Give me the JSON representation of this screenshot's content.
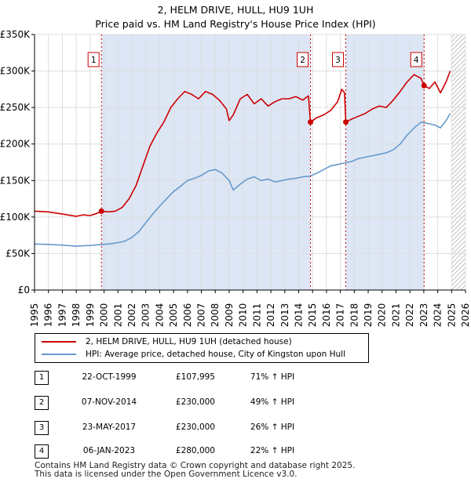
{
  "title": {
    "line1": "2, HELM DRIVE, HULL, HU9 1UH",
    "line2": "Price paid vs. HM Land Registry's House Price Index (HPI)"
  },
  "chart_data": {
    "type": "line",
    "title": "2, HELM DRIVE, HULL, HU9 1UH",
    "subtitle": "Price paid vs. HM Land Registry's House Price Index (HPI)",
    "xlabel": "",
    "ylabel": "",
    "xlim": [
      1995,
      2026
    ],
    "ylim": [
      0,
      350000
    ],
    "y_ticks": [
      0,
      50000,
      100000,
      150000,
      200000,
      250000,
      300000,
      350000
    ],
    "y_tick_labels": [
      "£0",
      "£50K",
      "£100K",
      "£150K",
      "£200K",
      "£250K",
      "£300K",
      "£350K"
    ],
    "x_ticks": [
      1995,
      1996,
      1997,
      1998,
      1999,
      2000,
      2001,
      2002,
      2003,
      2004,
      2005,
      2006,
      2007,
      2008,
      2009,
      2010,
      2011,
      2012,
      2013,
      2014,
      2015,
      2016,
      2017,
      2018,
      2019,
      2020,
      2021,
      2022,
      2023,
      2024,
      2025,
      2026
    ],
    "x_tick_labels": [
      "1995",
      "1996",
      "1997",
      "1998",
      "1999",
      "2000",
      "2001",
      "2002",
      "2003",
      "2004",
      "2005",
      "2006",
      "2007",
      "2008",
      "2009",
      "2010",
      "2011",
      "2012",
      "2013",
      "2014",
      "2015",
      "2016",
      "2017",
      "2018",
      "2019",
      "2020",
      "2021",
      "2022",
      "2023",
      "2024",
      "2025",
      "2026"
    ],
    "grid": true,
    "shaded_ranges": [
      [
        1999.81,
        2014.85
      ],
      [
        2017.39,
        2023.02
      ]
    ],
    "hatched_range": [
      2025.0,
      2026.0
    ],
    "colors": {
      "property": "#cc0000",
      "hpi": "#6699cc",
      "shade": "#dde6f5",
      "grid": "#dddddd",
      "marker_line": "#cc0000"
    },
    "series": [
      {
        "name": "2, HELM DRIVE, HULL, HU9 1UH (detached house)",
        "color": "#cc0000",
        "x": [
          1995.0,
          1996.0,
          1997.0,
          1998.0,
          1998.5,
          1999.0,
          1999.5,
          1999.81,
          2000.3,
          2000.8,
          2001.3,
          2001.8,
          2002.3,
          2002.8,
          2003.3,
          2003.8,
          2004.3,
          2004.8,
          2005.3,
          2005.8,
          2006.3,
          2006.8,
          2007.3,
          2007.8,
          2008.3,
          2008.8,
          2009.0,
          2009.3,
          2009.8,
          2010.3,
          2010.8,
          2011.3,
          2011.8,
          2012.3,
          2012.8,
          2013.3,
          2013.8,
          2014.3,
          2014.7,
          2014.85,
          2015.3,
          2015.8,
          2016.3,
          2016.8,
          2017.1,
          2017.3,
          2017.39,
          2017.8,
          2018.3,
          2018.8,
          2019.3,
          2019.8,
          2020.3,
          2020.8,
          2021.3,
          2021.8,
          2022.3,
          2022.8,
          2023.02,
          2023.4,
          2023.8,
          2024.2,
          2024.6,
          2024.9
        ],
        "values": [
          108000,
          107000,
          104000,
          101000,
          103000,
          102000,
          105000,
          107995,
          107000,
          108000,
          113000,
          125000,
          143000,
          170000,
          197000,
          215000,
          230000,
          250000,
          262000,
          272000,
          268000,
          262000,
          272000,
          268000,
          260000,
          248000,
          232000,
          240000,
          262000,
          268000,
          255000,
          262000,
          252000,
          258000,
          262000,
          262000,
          265000,
          260000,
          266000,
          230000,
          236000,
          240000,
          246000,
          258000,
          275000,
          270000,
          230000,
          234000,
          238000,
          242000,
          248000,
          252000,
          250000,
          260000,
          272000,
          285000,
          295000,
          290000,
          280000,
          276000,
          285000,
          270000,
          285000,
          300000
        ]
      },
      {
        "name": "HPI: Average price, detached house, City of Kingston upon Hull",
        "color": "#6699cc",
        "x": [
          1995.0,
          1996.0,
          1997.0,
          1998.0,
          1998.5,
          1999.0,
          1999.5,
          2000.0,
          2000.5,
          2001.0,
          2001.5,
          2002.0,
          2002.5,
          2003.0,
          2003.5,
          2004.0,
          2004.5,
          2005.0,
          2005.5,
          2006.0,
          2006.5,
          2007.0,
          2007.5,
          2008.0,
          2008.5,
          2009.0,
          2009.3,
          2009.8,
          2010.3,
          2010.8,
          2011.3,
          2011.8,
          2012.3,
          2012.8,
          2013.3,
          2013.8,
          2014.3,
          2014.8,
          2015.3,
          2015.8,
          2016.3,
          2016.8,
          2017.3,
          2017.8,
          2018.3,
          2018.8,
          2019.3,
          2019.8,
          2020.3,
          2020.8,
          2021.3,
          2021.8,
          2022.3,
          2022.8,
          2023.3,
          2023.8,
          2024.2,
          2024.6,
          2024.9
        ],
        "values": [
          63000,
          62500,
          61500,
          60000,
          60500,
          61000,
          62000,
          62500,
          63500,
          65000,
          67000,
          72000,
          80000,
          92000,
          104000,
          115000,
          125000,
          135000,
          142000,
          150000,
          153000,
          157000,
          163000,
          165000,
          160000,
          150000,
          137000,
          145000,
          152000,
          155000,
          150000,
          152000,
          148000,
          150000,
          152000,
          153000,
          155000,
          156000,
          160000,
          165000,
          170000,
          172000,
          174000,
          176000,
          180000,
          182000,
          184000,
          186000,
          188000,
          192000,
          200000,
          212000,
          222000,
          230000,
          228000,
          226000,
          222000,
          232000,
          242000
        ]
      }
    ],
    "markers": [
      {
        "label": "1",
        "x": 1999.81,
        "value": 107995
      },
      {
        "label": "2",
        "x": 2014.85,
        "value": 230000
      },
      {
        "label": "3",
        "x": 2017.39,
        "value": 230000
      },
      {
        "label": "4",
        "x": 2023.02,
        "value": 280000
      }
    ]
  },
  "legend": {
    "items": [
      {
        "label": "2, HELM DRIVE, HULL, HU9 1UH (detached house)",
        "color": "#cc0000"
      },
      {
        "label": "HPI: Average price, detached house, City of Kingston upon Hull",
        "color": "#6699cc"
      }
    ]
  },
  "transactions": [
    {
      "num": "1",
      "date": "22-OCT-1999",
      "price": "£107,995",
      "hpi": "71% ↑ HPI"
    },
    {
      "num": "2",
      "date": "07-NOV-2014",
      "price": "£230,000",
      "hpi": "49% ↑ HPI"
    },
    {
      "num": "3",
      "date": "23-MAY-2017",
      "price": "£230,000",
      "hpi": "26% ↑ HPI"
    },
    {
      "num": "4",
      "date": "06-JAN-2023",
      "price": "£280,000",
      "hpi": "22% ↑ HPI"
    }
  ],
  "footer": {
    "line1": "Contains HM Land Registry data © Crown copyright and database right 2025.",
    "line2": "This data is licensed under the Open Government Licence v3.0."
  }
}
